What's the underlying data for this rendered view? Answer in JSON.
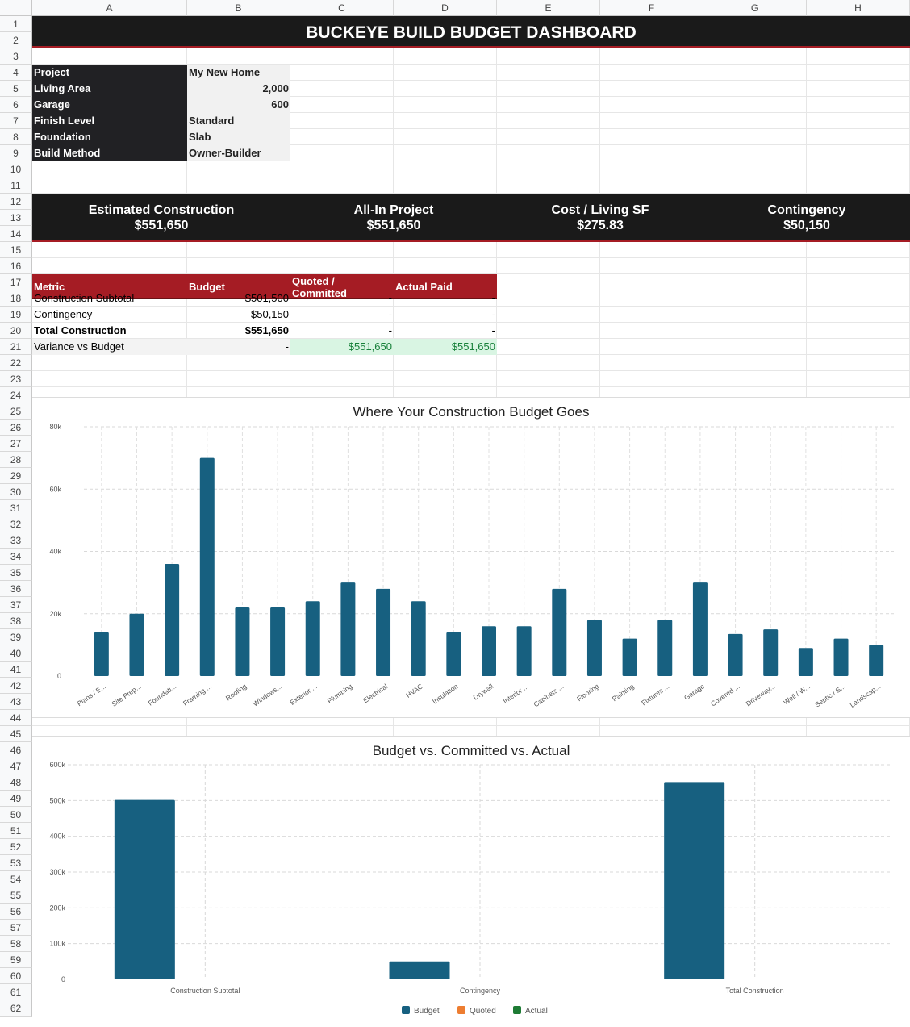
{
  "columns": [
    "A",
    "B",
    "C",
    "D",
    "E",
    "F",
    "G",
    "H"
  ],
  "rows": [
    "1",
    "2",
    "3",
    "4",
    "5",
    "6",
    "7",
    "8",
    "9",
    "10",
    "11",
    "12",
    "13",
    "14",
    "15",
    "16",
    "17",
    "18",
    "19",
    "20",
    "21",
    "22",
    "23",
    "24",
    "25",
    "26",
    "27",
    "28",
    "29",
    "30",
    "31",
    "32",
    "33",
    "34",
    "35",
    "36",
    "37",
    "38",
    "39",
    "40",
    "41",
    "42",
    "43",
    "44",
    "45",
    "46",
    "47",
    "48",
    "49",
    "50",
    "51",
    "52",
    "53",
    "54",
    "55",
    "56",
    "57",
    "58",
    "59",
    "60",
    "61",
    "62"
  ],
  "title": "BUCKEYE BUILD BUDGET DASHBOARD",
  "project_info": [
    {
      "label": "Project",
      "value": "My New Home"
    },
    {
      "label": "Living Area",
      "value": "2,000"
    },
    {
      "label": "Garage",
      "value": "600"
    },
    {
      "label": "Finish Level",
      "value": "Standard"
    },
    {
      "label": "Foundation",
      "value": "Slab"
    },
    {
      "label": "Build Method",
      "value": "Owner-Builder"
    }
  ],
  "kpis": [
    {
      "label": "Estimated Construction",
      "value": "$551,650"
    },
    {
      "label": "All-In Project",
      "value": "$551,650"
    },
    {
      "label": "Cost / Living SF",
      "value": "$275.83"
    },
    {
      "label": "Contingency",
      "value": "$50,150"
    }
  ],
  "metrics_table": {
    "headers": [
      "Metric",
      "Budget",
      "Quoted / Committed",
      "Actual Paid"
    ],
    "rows": [
      [
        "Construction Subtotal",
        "$501,500",
        "-",
        "-"
      ],
      [
        "Contingency",
        "$50,150",
        "-",
        "-"
      ],
      [
        "Total Construction",
        "$551,650",
        "-",
        "-"
      ],
      [
        "Variance vs Budget",
        "-",
        "$551,650",
        "$551,650"
      ]
    ]
  },
  "colors": {
    "dark": "#1a1a1a",
    "accent_red": "#a51c24",
    "bar_blue": "#176080",
    "quoted_orange": "#ed7d31",
    "actual_green": "#1e7b34",
    "variance_green_bg": "#d9f5e3",
    "variance_green_text": "#17803a"
  },
  "chart_data": [
    {
      "type": "bar",
      "title": "Where Your Construction Budget Goes",
      "categories": [
        "Plans / E...",
        "Site Prep...",
        "Foundati...",
        "Framing ...",
        "Roofing",
        "Windows...",
        "Exterior ...",
        "Plumbing",
        "Electrical",
        "HVAC",
        "Insulation",
        "Drywall",
        "Interior ...",
        "Cabinets ...",
        "Flooring",
        "Painting",
        "Fixtures ...",
        "Garage",
        "Covered ...",
        "Driveway...",
        "Well / W...",
        "Septic / S...",
        "Landscap..."
      ],
      "values": [
        14000,
        20000,
        36000,
        70000,
        22000,
        22000,
        24000,
        30000,
        28000,
        24000,
        14000,
        16000,
        16000,
        28000,
        18000,
        12000,
        18000,
        30000,
        13500,
        15000,
        9000,
        12000,
        10000
      ],
      "ylim": [
        0,
        80000
      ],
      "yticks": [
        "0",
        "20k",
        "40k",
        "60k",
        "80k"
      ],
      "grid": true
    },
    {
      "type": "bar",
      "title": "Budget vs. Committed vs. Actual",
      "categories": [
        "Construction Subtotal",
        "Contingency",
        "Total Construction"
      ],
      "series": [
        {
          "name": "Budget",
          "values": [
            501500,
            50150,
            551650
          ]
        },
        {
          "name": "Quoted",
          "values": [
            0,
            0,
            0
          ]
        },
        {
          "name": "Actual",
          "values": [
            0,
            0,
            0
          ]
        }
      ],
      "ylim": [
        0,
        600000
      ],
      "yticks": [
        "0",
        "100k",
        "200k",
        "300k",
        "400k",
        "500k",
        "600k"
      ],
      "legend": "bottom",
      "grid": true
    }
  ]
}
